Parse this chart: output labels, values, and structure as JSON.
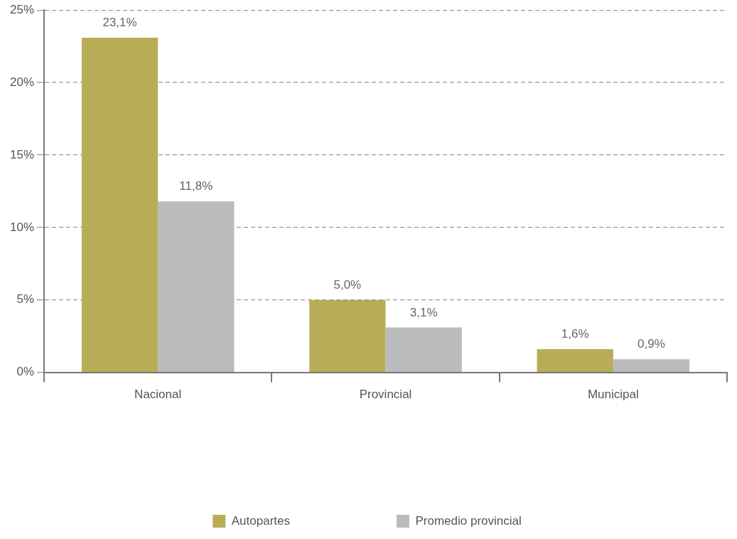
{
  "chart_data": {
    "type": "bar",
    "categories": [
      "Nacional",
      "Provincial",
      "Municipal"
    ],
    "series": [
      {
        "name": "Autopartes",
        "color": "#b8ad57",
        "values": [
          23.1,
          5.0,
          1.6
        ],
        "value_labels": [
          "23,1%",
          "5,0%",
          "1,6%"
        ]
      },
      {
        "name": "Promedio provincial",
        "color": "#bbbbbd",
        "values": [
          11.8,
          3.1,
          0.9
        ],
        "value_labels": [
          "11,8%",
          "3,1%",
          "0,9%"
        ]
      }
    ],
    "ylim": [
      0,
      25
    ],
    "yticks": [
      {
        "value": 0,
        "label": "0%"
      },
      {
        "value": 5,
        "label": "5%"
      },
      {
        "value": 10,
        "label": "10%"
      },
      {
        "value": 15,
        "label": "15%"
      },
      {
        "value": 20,
        "label": "20%"
      },
      {
        "value": 25,
        "label": "25%"
      }
    ],
    "grid": "y",
    "legend": "bottom"
  }
}
